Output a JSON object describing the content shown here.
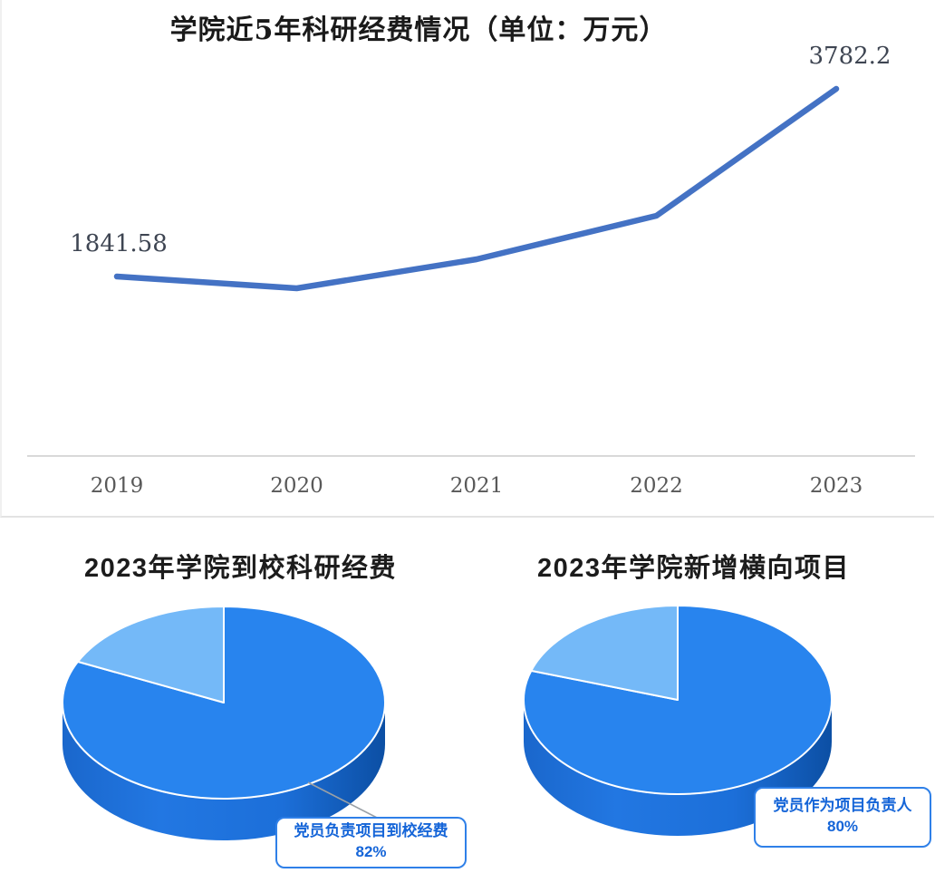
{
  "page": {
    "background": "#ffffff"
  },
  "chart_data": [
    {
      "type": "line",
      "title": "学院近5年科研经费情况（单位：万元）",
      "categories": [
        "2019",
        "2020",
        "2021",
        "2022",
        "2023"
      ],
      "values": [
        1841.58,
        1720,
        2020,
        2470,
        3782.2
      ],
      "data_labels": [
        {
          "index": 0,
          "text": "1841.58"
        },
        {
          "index": 4,
          "text": "3782.2"
        }
      ],
      "xlabel": "",
      "ylabel": "",
      "unit": "万元",
      "legend": "none",
      "grid": "off",
      "line_color": "#4472C4",
      "axis_color": "#D9D9D9",
      "tick_color": "#595959",
      "label_color": "#3E4552"
    },
    {
      "type": "pie",
      "title": "2023年学院到校科研经费",
      "slices": [
        {
          "label": "党员负责项目到校经费",
          "value": 82,
          "color": "#2884EE"
        },
        {
          "label": "",
          "value": 18,
          "color": "#74B9F8"
        }
      ],
      "callout_label": "党员负责项目到校经费",
      "callout_value": "82%",
      "style": "3d-pie"
    },
    {
      "type": "pie",
      "title": "2023年学院新增横向项目",
      "slices": [
        {
          "label": "党员作为项目负责人",
          "value": 80,
          "color": "#2884EE"
        },
        {
          "label": "",
          "value": 20,
          "color": "#74B9F8"
        }
      ],
      "callout_label": "党员作为项目负责人",
      "callout_value": "80%",
      "style": "3d-pie"
    }
  ]
}
